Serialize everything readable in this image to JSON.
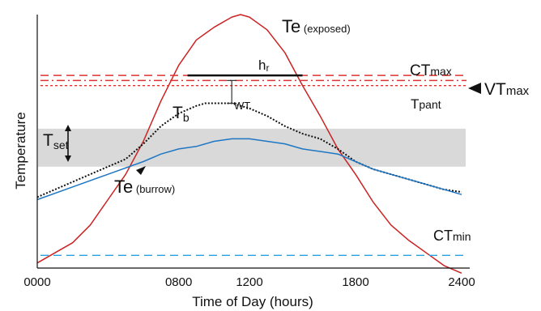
{
  "chart_data": {
    "type": "line",
    "title": "",
    "xlabel": "Time of Day (hours)",
    "ylabel": "Temperature",
    "xticks": [
      "0000",
      "0800",
      "1200",
      "1800",
      "2400"
    ],
    "xtick_values": [
      0,
      8,
      12,
      18,
      24
    ],
    "xlim": [
      0,
      24
    ],
    "ylim": [
      0,
      100
    ],
    "grid": false,
    "legend": "none",
    "series": [
      {
        "name": "Te (exposed)",
        "color": "#cc2222",
        "x": [
          0,
          1,
          2,
          3,
          4,
          5,
          6,
          7,
          8,
          9,
          10,
          11,
          11.5,
          12,
          13,
          14,
          15,
          16,
          17,
          18,
          19,
          20,
          21,
          22,
          23,
          24
        ],
        "y": [
          2,
          6,
          10,
          17,
          27,
          37,
          50,
          66,
          80,
          90,
          95,
          99,
          100,
          99,
          94,
          85,
          72,
          60,
          47,
          37,
          26,
          17,
          11,
          6,
          1,
          -2
        ]
      },
      {
        "name": "Tb",
        "color": "#111111",
        "style": "dotted",
        "x": [
          0,
          1,
          2,
          3,
          4,
          5,
          6,
          7,
          8,
          9,
          9.5,
          10,
          11,
          11.5,
          12,
          13,
          14,
          15,
          16,
          17,
          18,
          19,
          20,
          21,
          22,
          23,
          24
        ],
        "y": [
          28,
          31,
          34,
          37,
          40,
          43,
          49,
          56,
          61,
          64,
          65,
          65,
          65,
          64,
          63,
          60,
          56,
          53,
          51,
          47,
          42,
          39,
          37,
          35,
          33,
          31,
          30
        ]
      },
      {
        "name": "Te (burrow)",
        "color": "#1f77c4",
        "x": [
          0,
          2,
          4,
          6,
          7,
          8,
          9,
          10,
          11,
          12,
          13,
          14,
          15,
          16,
          17,
          18,
          19,
          20,
          22,
          24
        ],
        "y": [
          27,
          32,
          37,
          42,
          45,
          47,
          48,
          50,
          51,
          51,
          50,
          49,
          47,
          46,
          45,
          42,
          39,
          37,
          33,
          29
        ]
      }
    ],
    "reference_lines": [
      {
        "name": "CTmax",
        "y": 76,
        "color": "#dd3333",
        "style": "dashed"
      },
      {
        "name": "VTmax",
        "y": 74,
        "color": "#dd3333",
        "style": "dashdot"
      },
      {
        "name": "Tpant",
        "y": 72,
        "color": "#dd3333",
        "style": "dotted"
      },
      {
        "name": "CTmin",
        "y": 5,
        "color": "#29a3dd",
        "style": "dashed"
      }
    ],
    "band": {
      "name": "Tset",
      "y_range": [
        40,
        55
      ],
      "color": "#d9d9d9"
    },
    "annotations": {
      "te_exposed": "Te (exposed)",
      "te_burrow": "Te (burrow)",
      "tb": "Tb",
      "tset": "Tset",
      "hr": "hr",
      "wt": "WT",
      "ctmax": "CTmax",
      "vtmax": "VTmax",
      "tpant": "Tpant",
      "ctmin": "CTmin"
    },
    "hr_span_x": [
      8.5,
      15
    ],
    "wt_x": 11,
    "wt_y_range": [
      65,
      74
    ]
  }
}
